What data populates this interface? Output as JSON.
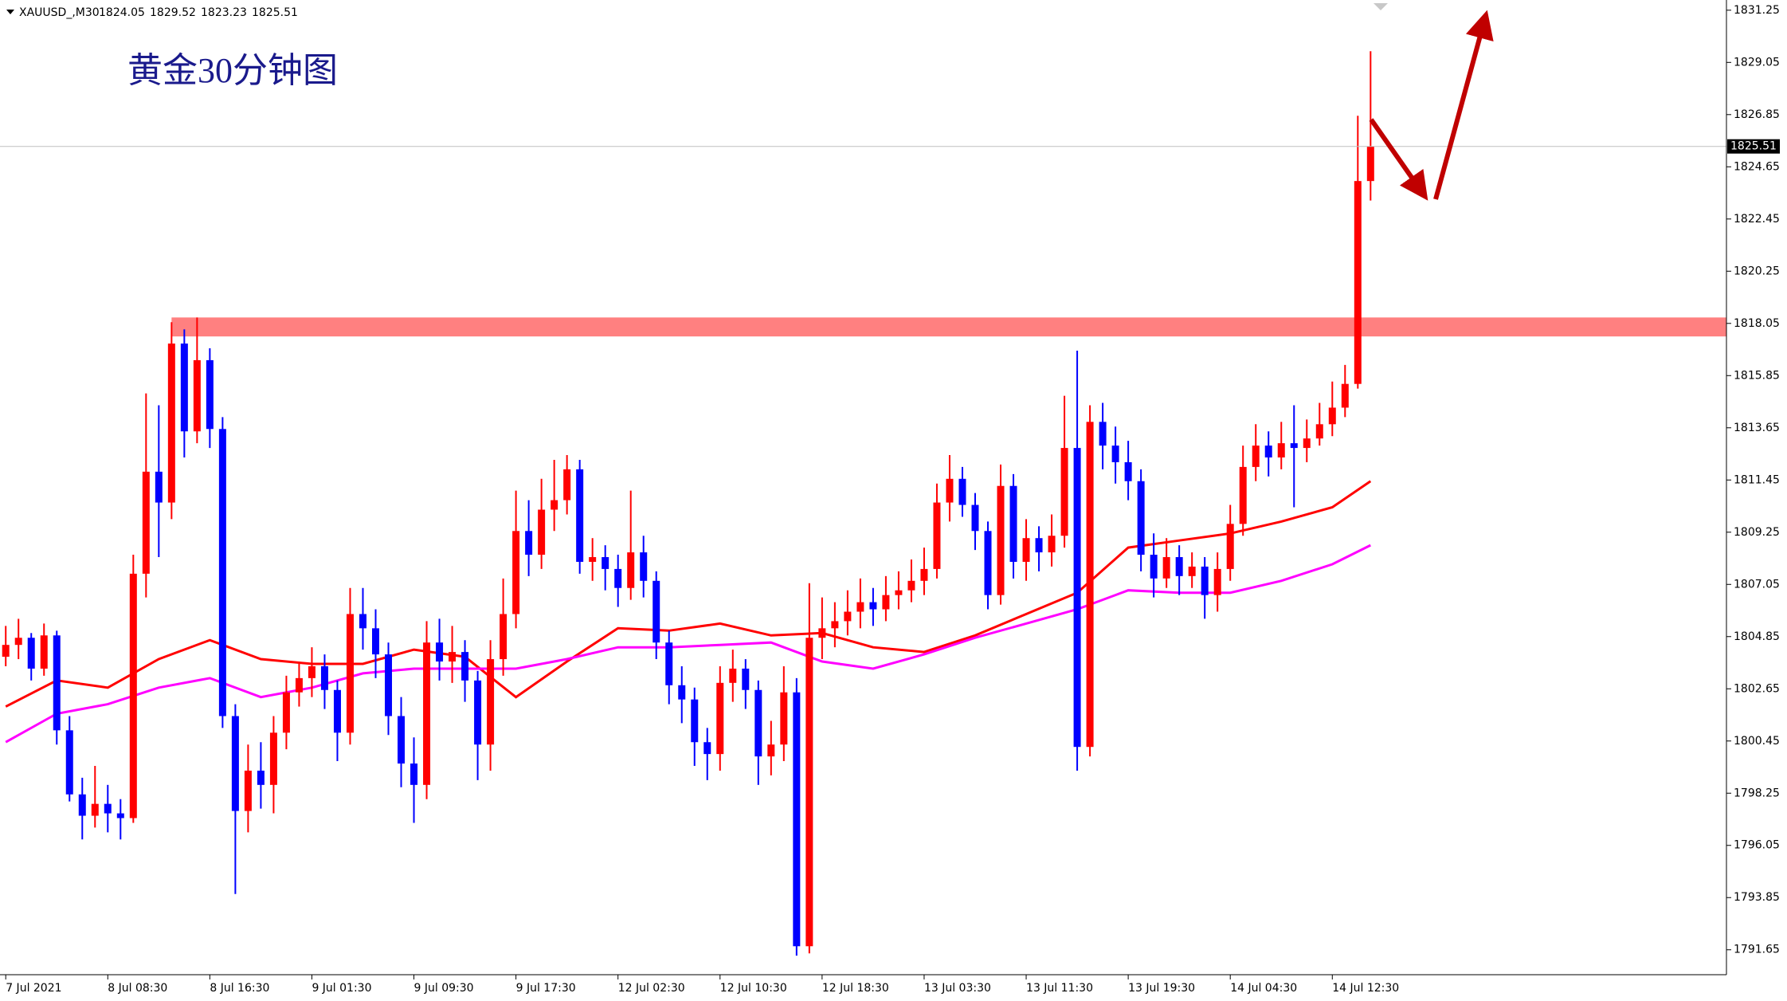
{
  "chart_data": {
    "type": "candlestick",
    "title": "黄金30分钟图",
    "symbol": "XAUUSD_,M30",
    "up_color": "#ff0000",
    "down_color": "#0000ff",
    "candles": [
      [
        1804.0,
        1805.3,
        1803.6,
        1804.5
      ],
      [
        1804.5,
        1805.6,
        1803.9,
        1804.8
      ],
      [
        1804.8,
        1805.0,
        1803.0,
        1803.5
      ],
      [
        1803.5,
        1805.4,
        1803.2,
        1804.9
      ],
      [
        1804.9,
        1805.1,
        1800.3,
        1800.9
      ],
      [
        1800.9,
        1801.5,
        1797.9,
        1798.2
      ],
      [
        1798.2,
        1798.9,
        1796.3,
        1797.3
      ],
      [
        1797.3,
        1799.4,
        1796.8,
        1797.8
      ],
      [
        1797.8,
        1798.6,
        1796.6,
        1797.4
      ],
      [
        1797.4,
        1798.0,
        1796.3,
        1797.2
      ],
      [
        1797.2,
        1808.3,
        1797.0,
        1807.5
      ],
      [
        1807.5,
        1815.1,
        1806.5,
        1811.8
      ],
      [
        1811.8,
        1814.6,
        1808.2,
        1810.5
      ],
      [
        1810.5,
        1818.1,
        1809.8,
        1817.2
      ],
      [
        1817.2,
        1817.8,
        1812.4,
        1813.5
      ],
      [
        1813.5,
        1818.3,
        1813.0,
        1816.5
      ],
      [
        1816.5,
        1817.0,
        1812.8,
        1813.6
      ],
      [
        1813.6,
        1814.1,
        1801.0,
        1801.5
      ],
      [
        1801.5,
        1802.0,
        1794.0,
        1797.5
      ],
      [
        1797.5,
        1800.3,
        1796.6,
        1799.2
      ],
      [
        1799.2,
        1800.4,
        1797.6,
        1798.6
      ],
      [
        1798.6,
        1801.5,
        1797.4,
        1800.8
      ],
      [
        1800.8,
        1803.2,
        1800.1,
        1802.5
      ],
      [
        1802.5,
        1803.8,
        1801.9,
        1803.1
      ],
      [
        1803.1,
        1804.4,
        1802.3,
        1803.6
      ],
      [
        1803.6,
        1804.1,
        1801.8,
        1802.6
      ],
      [
        1802.6,
        1803.0,
        1799.6,
        1800.8
      ],
      [
        1800.8,
        1806.9,
        1800.3,
        1805.8
      ],
      [
        1805.8,
        1806.9,
        1804.3,
        1805.2
      ],
      [
        1805.2,
        1806.0,
        1803.1,
        1804.1
      ],
      [
        1804.1,
        1804.6,
        1800.7,
        1801.5
      ],
      [
        1801.5,
        1802.3,
        1798.5,
        1799.5
      ],
      [
        1799.5,
        1800.6,
        1797.0,
        1798.6
      ],
      [
        1798.6,
        1805.5,
        1798.0,
        1804.6
      ],
      [
        1804.6,
        1805.6,
        1803.0,
        1803.8
      ],
      [
        1803.8,
        1805.3,
        1802.9,
        1804.2
      ],
      [
        1804.2,
        1804.7,
        1802.1,
        1803.0
      ],
      [
        1803.0,
        1803.4,
        1798.8,
        1800.3
      ],
      [
        1800.3,
        1804.7,
        1799.2,
        1803.9
      ],
      [
        1803.9,
        1807.3,
        1803.2,
        1805.8
      ],
      [
        1805.8,
        1811.0,
        1805.2,
        1809.3
      ],
      [
        1809.3,
        1810.6,
        1807.4,
        1808.3
      ],
      [
        1808.3,
        1811.5,
        1807.7,
        1810.2
      ],
      [
        1810.2,
        1812.3,
        1809.3,
        1810.6
      ],
      [
        1810.6,
        1812.5,
        1810.0,
        1811.9
      ],
      [
        1811.9,
        1812.3,
        1807.5,
        1808.0
      ],
      [
        1808.0,
        1809.0,
        1807.2,
        1808.2
      ],
      [
        1808.2,
        1808.7,
        1806.8,
        1807.7
      ],
      [
        1807.7,
        1808.3,
        1806.1,
        1806.9
      ],
      [
        1806.9,
        1811.0,
        1806.4,
        1808.4
      ],
      [
        1808.4,
        1809.1,
        1806.5,
        1807.2
      ],
      [
        1807.2,
        1807.6,
        1803.9,
        1804.6
      ],
      [
        1804.6,
        1805.1,
        1802.0,
        1802.8
      ],
      [
        1802.8,
        1803.6,
        1801.2,
        1802.2
      ],
      [
        1802.2,
        1802.7,
        1799.4,
        1800.4
      ],
      [
        1800.4,
        1801.0,
        1798.8,
        1799.9
      ],
      [
        1799.9,
        1803.6,
        1799.2,
        1802.9
      ],
      [
        1802.9,
        1804.3,
        1802.1,
        1803.5
      ],
      [
        1803.5,
        1803.9,
        1801.8,
        1802.6
      ],
      [
        1802.6,
        1803.0,
        1798.6,
        1799.8
      ],
      [
        1799.8,
        1801.3,
        1799.0,
        1800.3
      ],
      [
        1800.3,
        1803.6,
        1799.6,
        1802.5
      ],
      [
        1802.5,
        1803.1,
        1791.4,
        1791.8
      ],
      [
        1791.8,
        1807.1,
        1791.5,
        1804.8
      ],
      [
        1804.8,
        1806.5,
        1803.9,
        1805.2
      ],
      [
        1805.2,
        1806.3,
        1804.4,
        1805.5
      ],
      [
        1805.5,
        1806.8,
        1804.9,
        1805.9
      ],
      [
        1805.9,
        1807.3,
        1805.2,
        1806.3
      ],
      [
        1806.3,
        1806.9,
        1805.3,
        1806.0
      ],
      [
        1806.0,
        1807.4,
        1805.5,
        1806.6
      ],
      [
        1806.6,
        1807.6,
        1806.0,
        1806.8
      ],
      [
        1806.8,
        1808.1,
        1806.3,
        1807.2
      ],
      [
        1807.2,
        1808.6,
        1806.6,
        1807.7
      ],
      [
        1807.7,
        1811.3,
        1807.3,
        1810.5
      ],
      [
        1810.5,
        1812.5,
        1809.7,
        1811.5
      ],
      [
        1811.5,
        1812.0,
        1809.9,
        1810.4
      ],
      [
        1810.4,
        1810.9,
        1808.5,
        1809.3
      ],
      [
        1809.3,
        1809.7,
        1806.0,
        1806.6
      ],
      [
        1806.6,
        1812.1,
        1806.2,
        1811.2
      ],
      [
        1811.2,
        1811.7,
        1807.3,
        1808.0
      ],
      [
        1808.0,
        1809.8,
        1807.2,
        1809.0
      ],
      [
        1809.0,
        1809.5,
        1807.6,
        1808.4
      ],
      [
        1808.4,
        1810.0,
        1807.8,
        1809.1
      ],
      [
        1809.1,
        1815.0,
        1808.6,
        1812.8
      ],
      [
        1812.8,
        1816.9,
        1799.2,
        1800.2
      ],
      [
        1800.2,
        1814.6,
        1799.8,
        1813.9
      ],
      [
        1813.9,
        1814.7,
        1811.9,
        1812.9
      ],
      [
        1812.9,
        1813.7,
        1811.3,
        1812.2
      ],
      [
        1812.2,
        1813.1,
        1810.6,
        1811.4
      ],
      [
        1811.4,
        1811.9,
        1807.6,
        1808.3
      ],
      [
        1808.3,
        1809.2,
        1806.5,
        1807.3
      ],
      [
        1807.3,
        1809.0,
        1806.9,
        1808.2
      ],
      [
        1808.2,
        1808.7,
        1806.6,
        1807.4
      ],
      [
        1807.4,
        1808.4,
        1806.9,
        1807.8
      ],
      [
        1807.8,
        1808.2,
        1805.6,
        1806.6
      ],
      [
        1806.6,
        1808.4,
        1805.9,
        1807.7
      ],
      [
        1807.7,
        1810.4,
        1807.2,
        1809.6
      ],
      [
        1809.6,
        1812.9,
        1809.1,
        1812.0
      ],
      [
        1812.0,
        1813.8,
        1811.4,
        1812.9
      ],
      [
        1812.9,
        1813.5,
        1811.6,
        1812.4
      ],
      [
        1812.4,
        1813.9,
        1811.9,
        1813.0
      ],
      [
        1813.0,
        1814.6,
        1810.3,
        1812.8
      ],
      [
        1812.8,
        1814.0,
        1812.2,
        1813.2
      ],
      [
        1813.2,
        1814.7,
        1812.9,
        1813.8
      ],
      [
        1813.8,
        1815.6,
        1813.3,
        1814.5
      ],
      [
        1814.5,
        1816.3,
        1814.1,
        1815.5
      ],
      [
        1815.5,
        1826.8,
        1815.3,
        1824.05
      ],
      [
        1824.05,
        1829.52,
        1823.23,
        1825.51
      ]
    ],
    "series": [
      {
        "color": "#ff0000",
        "x": [
          0,
          4,
          8,
          12,
          16,
          20,
          24,
          28,
          32,
          36,
          40,
          44,
          48,
          52,
          56,
          60,
          64,
          68,
          72,
          76,
          80,
          84,
          88,
          92,
          96,
          100,
          104,
          107
        ],
        "values": [
          1801.9,
          1803.0,
          1802.7,
          1803.9,
          1804.7,
          1803.9,
          1803.7,
          1803.7,
          1804.3,
          1804.0,
          1802.3,
          1803.8,
          1805.2,
          1805.1,
          1805.4,
          1804.9,
          1805.0,
          1804.4,
          1804.2,
          1804.9,
          1805.8,
          1806.7,
          1808.6,
          1808.9,
          1809.2,
          1809.7,
          1810.3,
          1811.4
        ]
      },
      {
        "color": "#ff00ff",
        "x": [
          0,
          4,
          8,
          12,
          16,
          20,
          24,
          28,
          32,
          36,
          40,
          44,
          48,
          52,
          56,
          60,
          64,
          68,
          72,
          76,
          80,
          84,
          88,
          92,
          96,
          100,
          104,
          107
        ],
        "values": [
          1800.4,
          1801.6,
          1802.0,
          1802.7,
          1803.1,
          1802.3,
          1802.7,
          1803.3,
          1803.5,
          1803.5,
          1803.5,
          1803.9,
          1804.4,
          1804.4,
          1804.5,
          1804.6,
          1803.8,
          1803.5,
          1804.1,
          1804.8,
          1805.4,
          1806.0,
          1806.8,
          1806.7,
          1806.7,
          1807.2,
          1807.9,
          1808.7
        ]
      }
    ],
    "zone": {
      "low": 1817.5,
      "high": 1818.3,
      "start": 13,
      "color": "#ff8080"
    },
    "xlim": [
      -0.45,
      134.9
    ],
    "ylim": [
      1790.6,
      1831.68
    ],
    "yticks": [
      1831.25,
      1829.05,
      1826.85,
      1824.65,
      1822.45,
      1820.25,
      1818.05,
      1815.85,
      1813.65,
      1811.45,
      1809.25,
      1807.05,
      1804.85,
      1802.65,
      1800.45,
      1798.25,
      1796.05,
      1793.85,
      1791.65
    ],
    "xticks": [
      {
        "value": 0,
        "label": "7 Jul 2021"
      },
      {
        "value": 8,
        "label": "8 Jul 08:30"
      },
      {
        "value": 16,
        "label": "8 Jul 16:30"
      },
      {
        "value": 24,
        "label": "9 Jul 01:30"
      },
      {
        "value": 32,
        "label": "9 Jul 09:30"
      },
      {
        "value": 40,
        "label": "9 Jul 17:30"
      },
      {
        "value": 48,
        "label": "12 Jul 02:30"
      },
      {
        "value": 56,
        "label": "12 Jul 10:30"
      },
      {
        "value": 64,
        "label": "12 Jul 18:30"
      },
      {
        "value": 72,
        "label": "13 Jul 03:30"
      },
      {
        "value": 80,
        "label": "13 Jul 11:30"
      },
      {
        "value": 88,
        "label": "13 Jul 19:30"
      },
      {
        "value": 96,
        "label": "14 Jul 04:30"
      },
      {
        "value": 104,
        "label": "14 Jul 12:30"
      }
    ]
  }
}
